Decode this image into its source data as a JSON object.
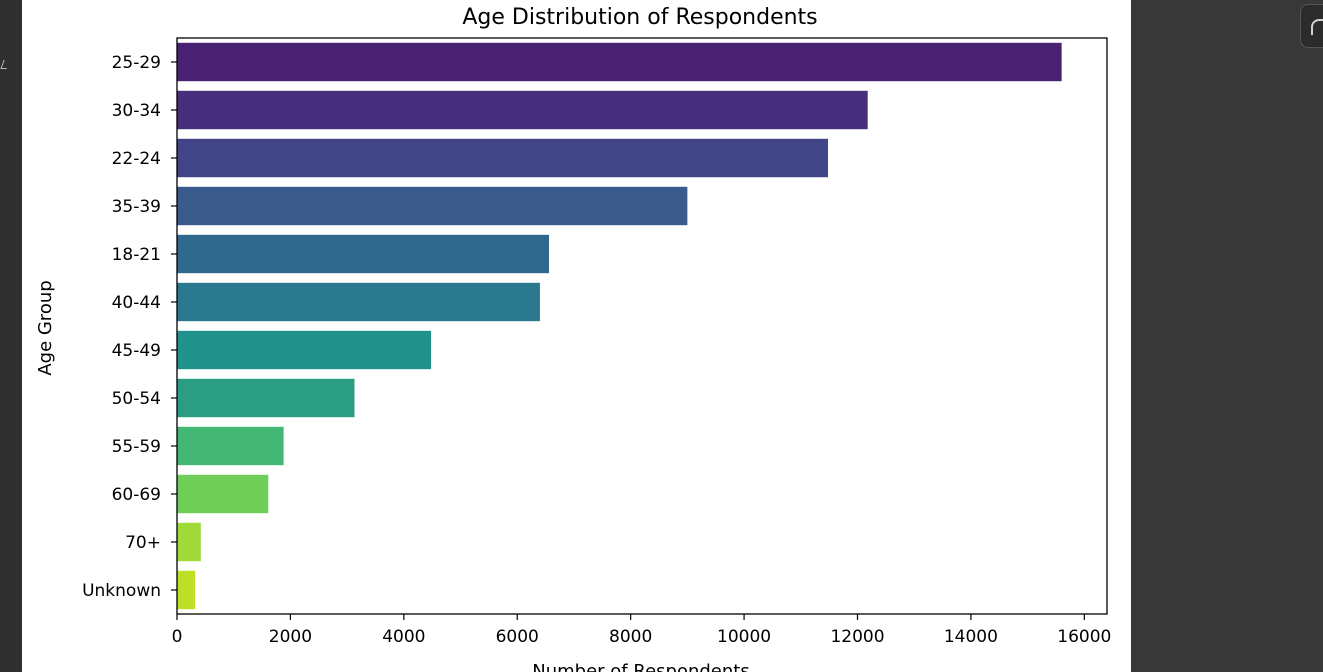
{
  "chart_data": {
    "type": "bar",
    "orientation": "horizontal",
    "title": "Age Distribution of Respondents",
    "xlabel": "Number of Respondents",
    "ylabel": "Age Group",
    "categories": [
      "25-29",
      "30-34",
      "22-24",
      "35-39",
      "18-21",
      "40-44",
      "45-49",
      "50-54",
      "55-59",
      "60-69",
      "70+",
      "Unknown"
    ],
    "values": [
      15600,
      12180,
      11480,
      9000,
      6560,
      6400,
      4480,
      3130,
      1880,
      1610,
      420,
      320
    ],
    "colors": [
      "#482173",
      "#482f7e",
      "#414487",
      "#3b5b8c",
      "#31688e",
      "#2a788e",
      "#21918c",
      "#2a9d82",
      "#43b773",
      "#6ece58",
      "#a0da39",
      "#bddf26"
    ],
    "xlim": [
      0,
      16400
    ],
    "xticks": [
      0,
      2000,
      4000,
      6000,
      8000,
      10000,
      12000,
      14000,
      16000
    ],
    "grid": false,
    "legend": "none"
  }
}
